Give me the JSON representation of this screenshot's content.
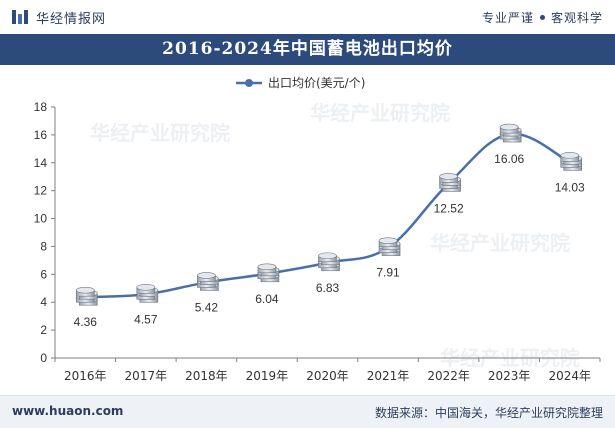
{
  "header": {
    "brand": "华经情报网",
    "slogan_left": "专业严谨",
    "slogan_right": "客观科学"
  },
  "title": "2016-2024年中国蓄电池出口均价",
  "footer": {
    "website": "www.huaon.com",
    "source": "数据来源：中国海关，华经产业研究院整理"
  },
  "watermark": "华经产业研究院",
  "chart_data": {
    "type": "line",
    "categories": [
      "2016年",
      "2017年",
      "2018年",
      "2019年",
      "2020年",
      "2021年",
      "2022年",
      "2023年",
      "2024年"
    ],
    "series": [
      {
        "name": "出口均价(美元/个)",
        "values": [
          4.36,
          4.57,
          5.42,
          6.04,
          6.83,
          7.91,
          12.52,
          16.06,
          14.03
        ],
        "color": "#4a6fa8"
      }
    ],
    "ylim": [
      0,
      18
    ],
    "yticks": [
      0,
      2,
      4,
      6,
      8,
      10,
      12,
      14,
      16,
      18
    ],
    "grid": false,
    "legend_position": "top-center",
    "marker": "coin-stack"
  }
}
